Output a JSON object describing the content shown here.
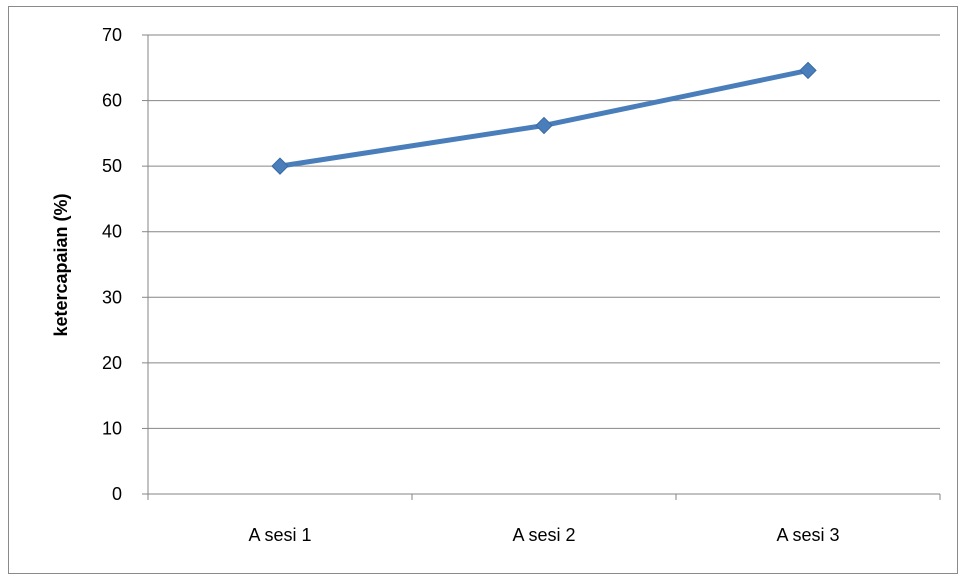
{
  "chart_data": {
    "type": "line",
    "title": "",
    "xlabel": "",
    "ylabel": "ketercapaian (%)",
    "categories": [
      "A sesi 1",
      "A sesi 2",
      "A sesi 3"
    ],
    "series": [
      {
        "values": [
          50,
          56.2,
          64.6
        ]
      }
    ],
    "ylim": [
      0,
      70
    ],
    "yticks": [
      "0",
      "10",
      "20",
      "30",
      "40",
      "50",
      "60",
      "70"
    ],
    "grid": true,
    "legend": "none",
    "line_color": "#4a7ebb",
    "marker": "diamond"
  }
}
